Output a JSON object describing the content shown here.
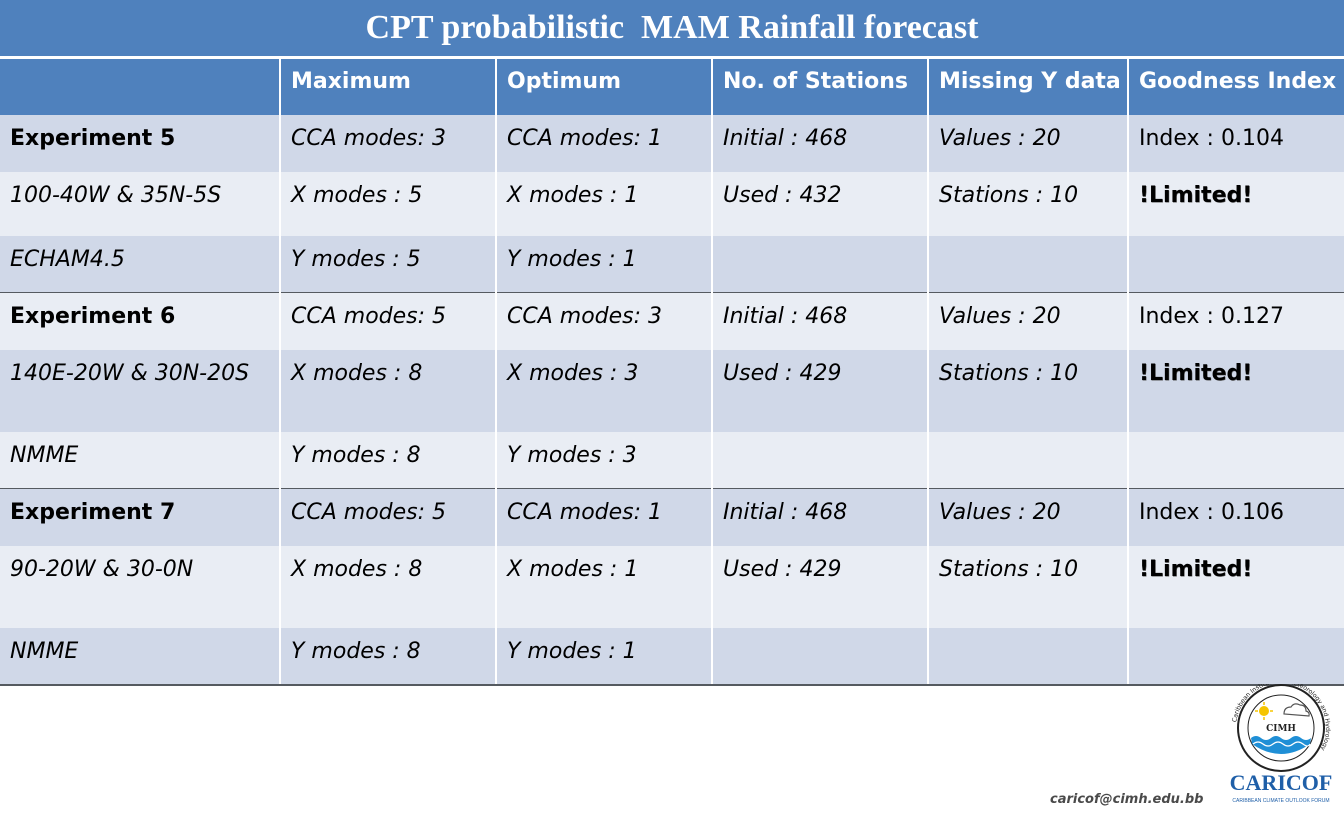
{
  "title": "CPT probabilistic  MAM Rainfall forecast",
  "table": {
    "headers": [
      "",
      "Maximum",
      "Optimum",
      "No. of Stations",
      "Missing Y data",
      "Goodness Index"
    ],
    "groups": [
      {
        "rows": [
          [
            "Experiment 5",
            "CCA modes: 3",
            "CCA modes: 1",
            "Initial : 468",
            "Values : 20",
            "Index : 0.104"
          ],
          [
            "100-40W & 35N-5S",
            "X modes : 5",
            "X modes : 1",
            "Used : 432",
            "Stations : 10",
            "!Limited!"
          ],
          [
            "ECHAM4.5",
            "Y modes : 5",
            "Y modes : 1",
            "",
            "",
            ""
          ]
        ]
      },
      {
        "rows": [
          [
            "Experiment 6",
            "CCA modes: 5",
            "CCA modes: 3",
            "Initial : 468",
            "Values : 20",
            "Index : 0.127"
          ],
          [
            "140E-20W & 30N-20S",
            "X modes : 8",
            "X modes : 3",
            "Used : 429",
            "Stations : 10",
            "!Limited!"
          ],
          [
            "NMME",
            "Y modes : 8",
            "Y modes : 3",
            "",
            "",
            ""
          ]
        ]
      },
      {
        "rows": [
          [
            "Experiment 7",
            "CCA modes: 5",
            "CCA modes: 1",
            "Initial : 468",
            "Values : 20",
            "Index : 0.106"
          ],
          [
            "90-20W & 30-0N",
            "X modes : 8",
            "X modes : 1",
            "Used : 429",
            "Stations : 10",
            "!Limited!"
          ],
          [
            "NMME",
            "Y modes : 8",
            "Y modes : 1",
            "",
            "",
            ""
          ]
        ]
      }
    ]
  },
  "footer": {
    "email": "caricof@cimh.edu.bb"
  },
  "logo": {
    "cimh_ring_text": "Caribbean Institute for Meteorology and Hydrology",
    "cimh_label": "CIMH",
    "caricof_label": "CARICOF",
    "caricof_tagline": "CARIBBEAN CLIMATE OUTLOOK FORUM"
  },
  "colors": {
    "header_blue": "#4f81bd",
    "row_dark": "#d0d8e8",
    "row_light": "#e9edf4"
  }
}
